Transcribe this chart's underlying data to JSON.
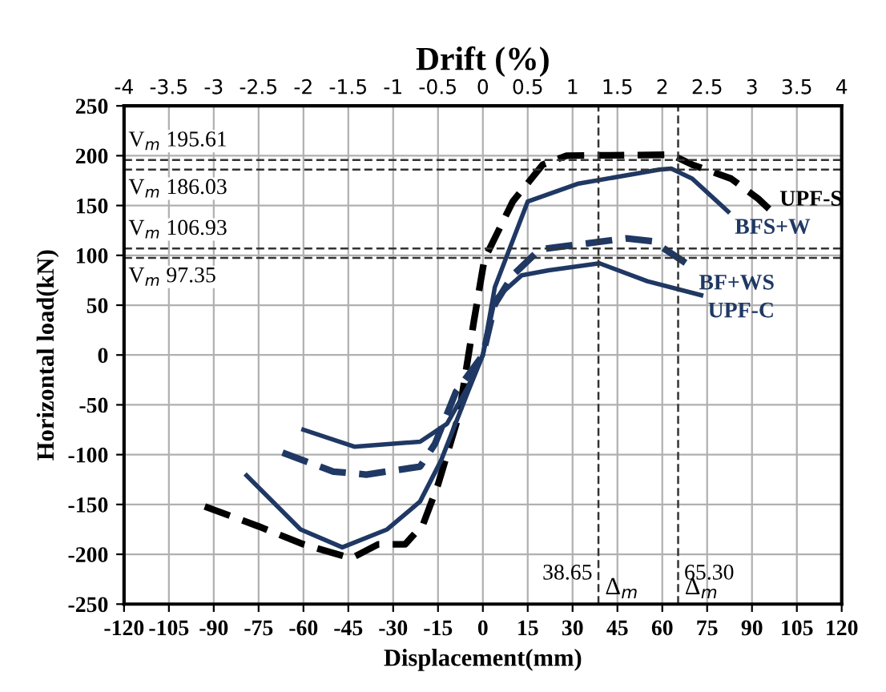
{
  "chart_data": {
    "type": "line",
    "xlabel": "Displacement(mm)",
    "ylabel": "Horizontal load(kN)",
    "x2label": "Drift (%)",
    "xlim": [
      -120,
      120
    ],
    "xticks": [
      -120,
      -105,
      -90,
      -75,
      -60,
      -45,
      -30,
      -15,
      0,
      15,
      30,
      45,
      60,
      75,
      90,
      105,
      120
    ],
    "ylim": [
      -250,
      250
    ],
    "yticks": [
      -250,
      -200,
      -150,
      -100,
      -50,
      0,
      50,
      100,
      150,
      200,
      250
    ],
    "x2lim": [
      -4,
      4
    ],
    "x2ticks": [
      -4,
      -3.5,
      -3,
      -2.5,
      -2,
      -1.5,
      -1,
      -0.5,
      0,
      0.5,
      1,
      1.5,
      2,
      2.5,
      3,
      3.5,
      4
    ],
    "grid": true,
    "marker": "none",
    "series": [
      {
        "name": "UPF-S",
        "color": "#000000",
        "line_style": "dashed",
        "x": [
          -93,
          -75,
          -60,
          -44,
          -35,
          -26,
          -20,
          -15,
          -8,
          -3,
          0.5,
          10,
          20,
          28,
          63,
          70,
          83,
          92,
          97
        ],
        "values": [
          -152,
          -172,
          -190,
          -204,
          -190,
          -190,
          -170,
          -130,
          -60,
          34,
          96,
          154,
          191,
          200,
          201,
          191,
          177,
          157,
          143
        ]
      },
      {
        "name": "BFS+W",
        "color": "#1f3864",
        "line_style": "solid",
        "x": [
          -79,
          -61,
          -47,
          -32,
          -21,
          -14,
          -5,
          0,
          4,
          15,
          32,
          59,
          63,
          70,
          82
        ],
        "values": [
          -121,
          -175,
          -193,
          -175,
          -147,
          -106,
          -37,
          0,
          68,
          154,
          172,
          186,
          187,
          177,
          144
        ]
      },
      {
        "name": "BF+WS",
        "color": "#1f3864",
        "line_style": "dashed",
        "x": [
          -67,
          -50,
          -39,
          -21,
          -16,
          -9,
          0,
          4,
          10,
          19,
          32,
          48,
          57,
          70
        ],
        "values": [
          -98,
          -117,
          -120,
          -112,
          -89,
          -37,
          0,
          51,
          80,
          106,
          111,
          117,
          114,
          88
        ]
      },
      {
        "name": "UPF-C",
        "color": "#1f3864",
        "line_style": "solid",
        "x": [
          -60,
          -43,
          -21,
          -12,
          -5,
          0,
          4,
          13,
          22,
          39,
          55,
          73
        ],
        "values": [
          -75,
          -92,
          -87,
          -69,
          -32,
          0,
          56,
          80,
          85,
          92,
          74,
          60
        ]
      }
    ],
    "ref_lines": [
      {
        "axis": "y",
        "value": 195.61,
        "label": "V$_{m}$ 195.61",
        "line_style": "dashed"
      },
      {
        "axis": "y",
        "value": 186.03,
        "label": "V$_{m}$ 186.03",
        "line_style": "dashed"
      },
      {
        "axis": "y",
        "value": 106.93,
        "label": "V$_{m}$ 106.93",
        "line_style": "dashed"
      },
      {
        "axis": "y",
        "value": 97.35,
        "label": "V$_{m}$ 97.35",
        "line_style": "dashed"
      },
      {
        "axis": "x",
        "value": 38.65,
        "label": "38.65",
        "line_style": "dashed"
      },
      {
        "axis": "x",
        "value": 65.3,
        "label": "65.30",
        "line_style": "dashed"
      }
    ],
    "annotations": [
      {
        "text": "Δ$_{m}$",
        "x": 38.65,
        "y": -250
      },
      {
        "text": "Δ$_{m}$",
        "x": 65.3,
        "y": -250
      }
    ]
  }
}
